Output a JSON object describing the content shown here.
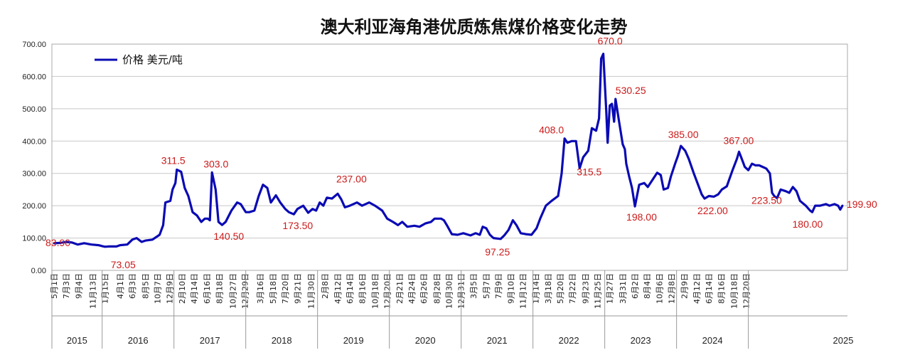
{
  "chart_data": {
    "type": "line",
    "title": "澳大利亚海角港优质炼焦煤价格变化走势",
    "ylim": [
      0,
      700
    ],
    "yticks": [
      "700.00",
      "600.00",
      "500.00",
      "400.00",
      "300.00",
      "200.00",
      "100.00",
      "0.00"
    ],
    "grid": true,
    "legend_position": "top-left",
    "series": [
      {
        "name": "价格 美元/吨",
        "color": "#0a0ab4",
        "points": [
          [
            2015.33,
            83.9
          ],
          [
            2015.42,
            85
          ],
          [
            2015.5,
            88
          ],
          [
            2015.58,
            86
          ],
          [
            2015.66,
            80
          ],
          [
            2015.75,
            84
          ],
          [
            2015.85,
            80
          ],
          [
            2015.95,
            78
          ],
          [
            2016.0,
            75
          ],
          [
            2016.04,
            73.05
          ],
          [
            2016.1,
            74
          ],
          [
            2016.2,
            74
          ],
          [
            2016.25,
            78
          ],
          [
            2016.35,
            80
          ],
          [
            2016.42,
            95
          ],
          [
            2016.48,
            100
          ],
          [
            2016.55,
            88
          ],
          [
            2016.6,
            92
          ],
          [
            2016.7,
            95
          ],
          [
            2016.8,
            110
          ],
          [
            2016.85,
            140
          ],
          [
            2016.88,
            210
          ],
          [
            2016.95,
            215
          ],
          [
            2016.98,
            250
          ],
          [
            2017.02,
            270
          ],
          [
            2017.04,
            311.5
          ],
          [
            2017.1,
            305
          ],
          [
            2017.15,
            255
          ],
          [
            2017.2,
            230
          ],
          [
            2017.26,
            180
          ],
          [
            2017.32,
            170
          ],
          [
            2017.38,
            150
          ],
          [
            2017.43,
            160
          ],
          [
            2017.47,
            160
          ],
          [
            2017.5,
            155
          ],
          [
            2017.53,
            303.0
          ],
          [
            2017.58,
            250
          ],
          [
            2017.62,
            150
          ],
          [
            2017.67,
            140.5
          ],
          [
            2017.72,
            150
          ],
          [
            2017.8,
            185
          ],
          [
            2017.88,
            210
          ],
          [
            2017.93,
            205
          ],
          [
            2018.0,
            180
          ],
          [
            2018.05,
            180
          ],
          [
            2018.12,
            185
          ],
          [
            2018.18,
            230
          ],
          [
            2018.24,
            265
          ],
          [
            2018.3,
            255
          ],
          [
            2018.35,
            210
          ],
          [
            2018.42,
            232
          ],
          [
            2018.48,
            210
          ],
          [
            2018.55,
            190
          ],
          [
            2018.6,
            180
          ],
          [
            2018.67,
            173.5
          ],
          [
            2018.72,
            190
          ],
          [
            2018.8,
            200
          ],
          [
            2018.87,
            178
          ],
          [
            2018.93,
            190
          ],
          [
            2018.98,
            185
          ],
          [
            2019.03,
            210
          ],
          [
            2019.08,
            200
          ],
          [
            2019.13,
            225
          ],
          [
            2019.2,
            222
          ],
          [
            2019.28,
            237
          ],
          [
            2019.33,
            220
          ],
          [
            2019.38,
            195
          ],
          [
            2019.45,
            200
          ],
          [
            2019.55,
            210
          ],
          [
            2019.62,
            200
          ],
          [
            2019.72,
            210
          ],
          [
            2019.8,
            200
          ],
          [
            2019.9,
            185
          ],
          [
            2019.97,
            160
          ],
          [
            2020.05,
            150
          ],
          [
            2020.12,
            140
          ],
          [
            2020.18,
            150
          ],
          [
            2020.25,
            135
          ],
          [
            2020.35,
            138
          ],
          [
            2020.42,
            135
          ],
          [
            2020.5,
            145
          ],
          [
            2020.58,
            150
          ],
          [
            2020.63,
            160
          ],
          [
            2020.72,
            160
          ],
          [
            2020.76,
            155
          ],
          [
            2020.8,
            140
          ],
          [
            2020.87,
            112
          ],
          [
            2020.95,
            110
          ],
          [
            2021.03,
            115
          ],
          [
            2021.13,
            108
          ],
          [
            2021.2,
            115
          ],
          [
            2021.26,
            110
          ],
          [
            2021.3,
            135
          ],
          [
            2021.35,
            130
          ],
          [
            2021.4,
            110
          ],
          [
            2021.45,
            100
          ],
          [
            2021.55,
            97.25
          ],
          [
            2021.6,
            108
          ],
          [
            2021.66,
            125
          ],
          [
            2021.72,
            155
          ],
          [
            2021.77,
            140
          ],
          [
            2021.83,
            115
          ],
          [
            2021.9,
            112
          ],
          [
            2021.98,
            110
          ],
          [
            2022.05,
            130
          ],
          [
            2022.1,
            160
          ],
          [
            2022.18,
            200
          ],
          [
            2022.26,
            215
          ],
          [
            2022.35,
            230
          ],
          [
            2022.4,
            300
          ],
          [
            2022.44,
            408.0
          ],
          [
            2022.48,
            395
          ],
          [
            2022.54,
            400
          ],
          [
            2022.6,
            400
          ],
          [
            2022.65,
            315.5
          ],
          [
            2022.7,
            350
          ],
          [
            2022.77,
            370
          ],
          [
            2022.82,
            440
          ],
          [
            2022.88,
            432
          ],
          [
            2022.92,
            470
          ],
          [
            2022.95,
            655
          ],
          [
            2022.98,
            670.0
          ],
          [
            2023.02,
            495
          ],
          [
            2023.04,
            395
          ],
          [
            2023.07,
            510
          ],
          [
            2023.1,
            515
          ],
          [
            2023.13,
            460
          ],
          [
            2023.15,
            530.25
          ],
          [
            2023.2,
            460
          ],
          [
            2023.25,
            390
          ],
          [
            2023.28,
            375
          ],
          [
            2023.3,
            330
          ],
          [
            2023.34,
            290
          ],
          [
            2023.38,
            255
          ],
          [
            2023.42,
            198.0
          ],
          [
            2023.48,
            265
          ],
          [
            2023.55,
            270
          ],
          [
            2023.6,
            258
          ],
          [
            2023.68,
            285
          ],
          [
            2023.73,
            302
          ],
          [
            2023.78,
            295
          ],
          [
            2023.82,
            250
          ],
          [
            2023.88,
            255
          ],
          [
            2023.92,
            290
          ],
          [
            2023.98,
            330
          ],
          [
            2024.02,
            355
          ],
          [
            2024.06,
            385.0
          ],
          [
            2024.12,
            370
          ],
          [
            2024.17,
            345
          ],
          [
            2024.24,
            300
          ],
          [
            2024.3,
            265
          ],
          [
            2024.35,
            235
          ],
          [
            2024.39,
            222.0
          ],
          [
            2024.45,
            230
          ],
          [
            2024.52,
            228
          ],
          [
            2024.58,
            235
          ],
          [
            2024.63,
            250
          ],
          [
            2024.7,
            260
          ],
          [
            2024.78,
            310
          ],
          [
            2024.84,
            345
          ],
          [
            2024.87,
            367.0
          ],
          [
            2024.9,
            350
          ],
          [
            2024.95,
            320
          ],
          [
            2025.0,
            310
          ],
          [
            2025.05,
            330
          ],
          [
            2025.1,
            325
          ],
          [
            2025.15,
            325
          ],
          [
            2025.2,
            320
          ],
          [
            2025.25,
            315
          ],
          [
            2025.3,
            300
          ],
          [
            2025.33,
            240
          ],
          [
            2025.36,
            230
          ],
          [
            2025.4,
            223.5
          ],
          [
            2025.45,
            250
          ],
          [
            2025.52,
            245
          ],
          [
            2025.57,
            240
          ],
          [
            2025.62,
            258
          ],
          [
            2025.67,
            245
          ],
          [
            2025.72,
            215
          ],
          [
            2025.8,
            200
          ],
          [
            2025.86,
            185
          ],
          [
            2025.89,
            180.0
          ],
          [
            2025.93,
            200
          ],
          [
            2026.0,
            200
          ],
          [
            2026.08,
            205
          ],
          [
            2026.13,
            200
          ],
          [
            2026.2,
            205
          ],
          [
            2026.25,
            200
          ],
          [
            2026.28,
            188
          ],
          [
            2026.31,
            199.9
          ]
        ]
      }
    ],
    "annotations": [
      {
        "text": "83.90",
        "x": 2015.33,
        "y": 83.9
      },
      {
        "text": "73.05",
        "x": 2016.04,
        "y": 73.05
      },
      {
        "text": "311.5",
        "x": 2017.04,
        "y": 311.5
      },
      {
        "text": "303.0",
        "x": 2017.53,
        "y": 303.0
      },
      {
        "text": "140.50",
        "x": 2017.67,
        "y": 140.5
      },
      {
        "text": "173.50",
        "x": 2018.67,
        "y": 173.5
      },
      {
        "text": "237.00",
        "x": 2019.28,
        "y": 237.0
      },
      {
        "text": "97.25",
        "x": 2021.55,
        "y": 97.25
      },
      {
        "text": "408.0",
        "x": 2022.44,
        "y": 408.0
      },
      {
        "text": "315.5",
        "x": 2022.65,
        "y": 315.5
      },
      {
        "text": "670.0",
        "x": 2022.98,
        "y": 670.0
      },
      {
        "text": "530.25",
        "x": 2023.15,
        "y": 530.25
      },
      {
        "text": "198.00",
        "x": 2023.42,
        "y": 198.0
      },
      {
        "text": "385.00",
        "x": 2024.06,
        "y": 385.0
      },
      {
        "text": "222.00",
        "x": 2024.39,
        "y": 222.0
      },
      {
        "text": "367.00",
        "x": 2024.87,
        "y": 367.0
      },
      {
        "text": "223.50",
        "x": 2025.4,
        "y": 223.5
      },
      {
        "text": "180.00",
        "x": 2025.89,
        "y": 180.0
      },
      {
        "text": "199.90",
        "x": 2026.31,
        "y": 199.9
      }
    ],
    "x_ticks": [
      {
        "label": "5月1日",
        "x": 2015.33
      },
      {
        "label": "7月3日",
        "x": 2015.5
      },
      {
        "label": "9月4日",
        "x": 2015.67
      },
      {
        "label": "11月13日",
        "x": 2015.87
      },
      {
        "label": "1月15日",
        "x": 2016.04
      },
      {
        "label": "4月1日",
        "x": 2016.25
      },
      {
        "label": "6月3日",
        "x": 2016.42
      },
      {
        "label": "8月5日",
        "x": 2016.6
      },
      {
        "label": "10月7日",
        "x": 2016.77
      },
      {
        "label": "12月9日",
        "x": 2016.94
      },
      {
        "label": "2月10日",
        "x": 2017.11
      },
      {
        "label": "4月14日",
        "x": 2017.28
      },
      {
        "label": "6月16日",
        "x": 2017.46
      },
      {
        "label": "8月18日",
        "x": 2017.63
      },
      {
        "label": "10月27日",
        "x": 2017.82
      },
      {
        "label": "12月29日",
        "x": 2017.99
      },
      {
        "label": "3月16日",
        "x": 2018.2
      },
      {
        "label": "5月18日",
        "x": 2018.38
      },
      {
        "label": "7月20日",
        "x": 2018.55
      },
      {
        "label": "9月21日",
        "x": 2018.72
      },
      {
        "label": "11月30日",
        "x": 2018.91
      },
      {
        "label": "2月8日",
        "x": 2019.1
      },
      {
        "label": "4月12日",
        "x": 2019.28
      },
      {
        "label": "6月14日",
        "x": 2019.45
      },
      {
        "label": "8月16日",
        "x": 2019.62
      },
      {
        "label": "10月18日",
        "x": 2019.8
      },
      {
        "label": "12月20日",
        "x": 2019.97
      },
      {
        "label": "2月21日",
        "x": 2020.14
      },
      {
        "label": "4月24日",
        "x": 2020.31
      },
      {
        "label": "6月26日",
        "x": 2020.48
      },
      {
        "label": "8月28日",
        "x": 2020.66
      },
      {
        "label": "10月30日",
        "x": 2020.83
      },
      {
        "label": "12月31日",
        "x": 2021.0
      },
      {
        "label": "3月5日",
        "x": 2021.17
      },
      {
        "label": "5月7日",
        "x": 2021.35
      },
      {
        "label": "7月9日",
        "x": 2021.52
      },
      {
        "label": "9月10日",
        "x": 2021.69
      },
      {
        "label": "11月12日",
        "x": 2021.86
      },
      {
        "label": "1月14日",
        "x": 2022.04
      },
      {
        "label": "3月18日",
        "x": 2022.21
      },
      {
        "label": "5月20日",
        "x": 2022.38
      },
      {
        "label": "7月22日",
        "x": 2022.55
      },
      {
        "label": "9月23日",
        "x": 2022.73
      },
      {
        "label": "11月25日",
        "x": 2022.9
      },
      {
        "label": "1月27日",
        "x": 2023.07
      },
      {
        "label": "3月31日",
        "x": 2023.25
      },
      {
        "label": "6月2日",
        "x": 2023.42
      },
      {
        "label": "8月4日",
        "x": 2023.59
      },
      {
        "label": "10月6日",
        "x": 2023.76
      },
      {
        "label": "12月8日",
        "x": 2023.93
      },
      {
        "label": "2月9日",
        "x": 2024.11
      },
      {
        "label": "4月12日",
        "x": 2024.28
      },
      {
        "label": "6月14日",
        "x": 2024.45
      },
      {
        "label": "8月16日",
        "x": 2024.62
      },
      {
        "label": "10月18日",
        "x": 2024.8
      },
      {
        "label": "12月20日",
        "x": 2024.97
      }
    ],
    "years": [
      {
        "label": "2015",
        "start": 2015.3,
        "end": 2016.0
      },
      {
        "label": "2016",
        "start": 2016.0,
        "end": 2017.0
      },
      {
        "label": "2017",
        "start": 2017.0,
        "end": 2018.0
      },
      {
        "label": "2018",
        "start": 2018.0,
        "end": 2019.0
      },
      {
        "label": "2019",
        "start": 2019.0,
        "end": 2020.0
      },
      {
        "label": "2020",
        "start": 2020.0,
        "end": 2021.0
      },
      {
        "label": "2021",
        "start": 2021.0,
        "end": 2022.0
      },
      {
        "label": "2022",
        "start": 2022.0,
        "end": 2023.0
      },
      {
        "label": "2023",
        "start": 2023.0,
        "end": 2024.0
      },
      {
        "label": "2024",
        "start": 2024.0,
        "end": 2025.0
      },
      {
        "label": "2025",
        "start": 2025.0,
        "end": 2025.08
      }
    ]
  }
}
